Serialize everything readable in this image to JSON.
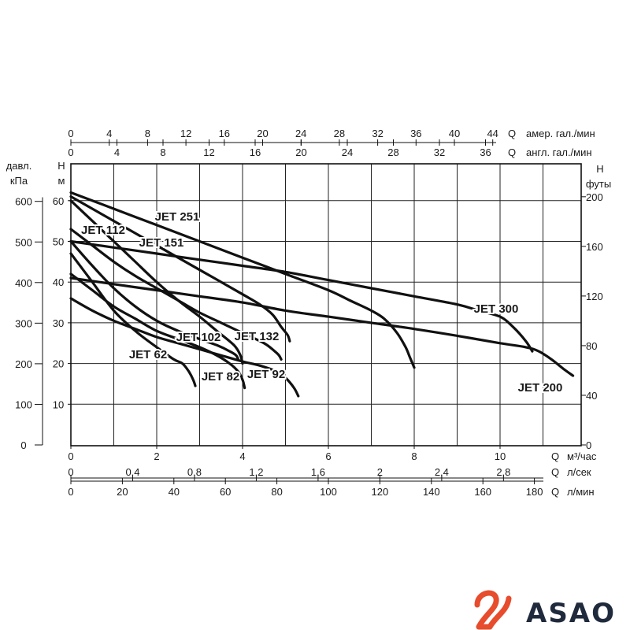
{
  "chart_data": {
    "type": "line",
    "title": "",
    "left_axis": {
      "kpa_label_1": "давл.",
      "kpa_label_2": "кПа",
      "kpa_ticks": [
        "0",
        "100",
        "200",
        "300",
        "400",
        "500",
        "600"
      ],
      "m_label_1": "H",
      "m_label_2": "м",
      "m_ticks": [
        "10",
        "20",
        "30",
        "40",
        "50",
        "60"
      ]
    },
    "right_axis": {
      "label_1": "H",
      "label_2": "футы",
      "ticks": [
        "0",
        "40",
        "80",
        "120",
        "160",
        "200"
      ]
    },
    "top_axes": [
      {
        "q": "Q",
        "unit": "амер. гал./мин",
        "ticks": [
          "0",
          "4",
          "8",
          "12",
          "16",
          "20",
          "24",
          "28",
          "32",
          "36",
          "40",
          "44"
        ]
      },
      {
        "q": "Q",
        "unit": "англ. гал./мин",
        "ticks": [
          "0",
          "4",
          "8",
          "12",
          "16",
          "20",
          "24",
          "28",
          "32",
          "36"
        ]
      }
    ],
    "bottom_axes": [
      {
        "q": "Q",
        "unit": "м³/час",
        "ticks": [
          "0",
          "2",
          "4",
          "6",
          "8",
          "10"
        ]
      },
      {
        "q": "Q",
        "unit": "л/сек",
        "ticks": [
          "0",
          "0,4",
          "0,8",
          "1,2",
          "1,6",
          "2",
          "2,4",
          "2,8"
        ]
      },
      {
        "q": "Q",
        "unit": "л/мин",
        "ticks": [
          "0",
          "20",
          "40",
          "60",
          "80",
          "100",
          "120",
          "140",
          "160",
          "180"
        ]
      }
    ],
    "xlim_m3h": [
      0,
      11.7
    ],
    "ylim_m": [
      0,
      70
    ],
    "grid": true,
    "series": [
      {
        "name": "JET 62",
        "x": [
          0,
          0.5,
          1.0,
          1.5,
          2.0,
          2.4,
          2.6,
          2.75,
          2.85,
          2.9
        ],
        "y": [
          47,
          40,
          33,
          28,
          24,
          21,
          20,
          18,
          16,
          14.5
        ]
      },
      {
        "name": "JET 82",
        "x": [
          0,
          0.5,
          1.0,
          1.5,
          2.0,
          2.5,
          3.0,
          3.4,
          3.7,
          3.9,
          4.0,
          4.05
        ],
        "y": [
          42,
          38,
          34,
          31,
          28,
          26,
          24,
          22,
          20,
          18,
          16,
          14
        ]
      },
      {
        "name": "JET 92",
        "x": [
          0,
          0.5,
          1.0,
          1.5,
          2.0,
          2.5,
          3.0,
          3.5,
          4.0,
          4.4,
          4.8,
          5.0,
          5.2,
          5.3
        ],
        "y": [
          36,
          33,
          30.5,
          28.5,
          26.5,
          25,
          23.5,
          22,
          20.5,
          19.5,
          18,
          16.5,
          14,
          12
        ]
      },
      {
        "name": "JET 102",
        "x": [
          0,
          0.5,
          1.0,
          1.5,
          2.0,
          2.5,
          3.0,
          3.4,
          3.7,
          3.85,
          3.9
        ],
        "y": [
          50,
          44,
          38.5,
          34,
          30.5,
          28,
          26,
          24.5,
          23,
          22,
          21
        ]
      },
      {
        "name": "JET 112",
        "x": [
          0,
          0.5,
          1.0,
          1.5,
          2.0,
          2.5,
          3.0,
          3.4,
          3.8,
          3.95,
          4.0
        ],
        "y": [
          60,
          55,
          50,
          45,
          40,
          35.5,
          31.5,
          28,
          24.5,
          22,
          20
        ]
      },
      {
        "name": "JET 132",
        "x": [
          0,
          0.5,
          1.0,
          1.5,
          2.0,
          2.5,
          3.0,
          3.5,
          4.0,
          4.5,
          4.75,
          4.85,
          4.9
        ],
        "y": [
          53,
          49,
          45,
          41.5,
          38.5,
          35.5,
          32.5,
          30,
          27.5,
          25,
          23,
          22,
          21
        ]
      },
      {
        "name": "JET 151",
        "x": [
          0,
          1.0,
          2.0,
          3.0,
          4.0,
          4.4,
          4.7,
          4.9,
          5.05,
          5.1
        ],
        "y": [
          61,
          55,
          49,
          43,
          37,
          34.5,
          32,
          29,
          27,
          25.5
        ]
      },
      {
        "name": "JET 200",
        "x": [
          0,
          1.0,
          2.0,
          3.0,
          4.0,
          5.0,
          6.0,
          7.0,
          8.0,
          9.0,
          10.0,
          10.6,
          10.9,
          11.2,
          11.5,
          11.7
        ],
        "y": [
          41,
          39.5,
          38,
          36.5,
          35,
          33,
          31.5,
          30,
          28.5,
          26.8,
          25,
          24,
          23,
          21,
          18.5,
          17
        ]
      },
      {
        "name": "JET 251",
        "x": [
          0,
          1.0,
          2.0,
          3.0,
          4.0,
          5.0,
          6.0,
          6.5,
          7.0,
          7.3,
          7.6,
          7.8,
          7.9,
          8.0
        ],
        "y": [
          62,
          58,
          54,
          50,
          46,
          42,
          38,
          35.5,
          33,
          31,
          27.5,
          24,
          21.5,
          19
        ]
      },
      {
        "name": "JET 300",
        "x": [
          0,
          1.0,
          2.0,
          3.0,
          4.0,
          5.0,
          6.0,
          7.0,
          8.0,
          9.0,
          9.5,
          10.0,
          10.3,
          10.6,
          10.75
        ],
        "y": [
          50,
          48.5,
          47,
          45.5,
          44,
          42.5,
          40.5,
          38.5,
          36.5,
          34.5,
          33,
          31.5,
          29,
          25.5,
          23
        ]
      }
    ]
  },
  "logo": {
    "text": "ASAO",
    "mark_color": "#e74c2c",
    "text_color": "#1f2a3c"
  }
}
